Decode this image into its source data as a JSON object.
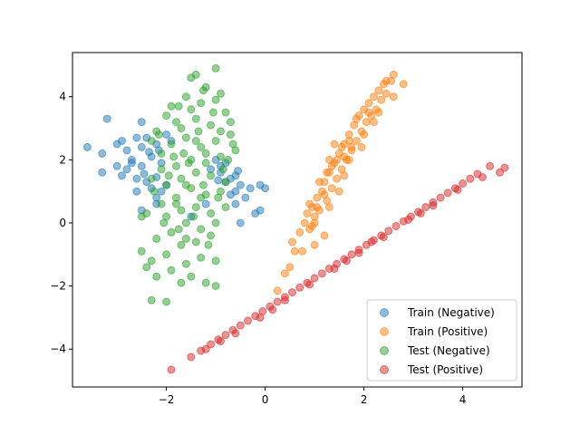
{
  "chart_data": {
    "type": "scatter",
    "title": "",
    "xlabel": "",
    "ylabel": "",
    "xlim": [
      -3.9,
      5.2
    ],
    "ylim": [
      -5.2,
      5.4
    ],
    "xticks": [
      -2,
      0,
      2,
      4
    ],
    "yticks": [
      -4,
      -2,
      0,
      2,
      4
    ],
    "xtick_labels": [
      "−2",
      "0",
      "2",
      "4"
    ],
    "ytick_labels": [
      "−4",
      "−2",
      "0",
      "2",
      "4"
    ],
    "grid": false,
    "legend_position": "lower-right",
    "series": [
      {
        "name": "Train (Negative)",
        "color": "#1f77b4",
        "points": [
          [
            -3.2,
            3.3
          ],
          [
            -2.5,
            3.2
          ],
          [
            -2.6,
            2.7
          ],
          [
            -2.9,
            2.6
          ],
          [
            -3.0,
            2.5
          ],
          [
            -3.6,
            2.4
          ],
          [
            -3.3,
            2.2
          ],
          [
            -2.8,
            2.3
          ],
          [
            -2.5,
            2.4
          ],
          [
            -2.2,
            2.5
          ],
          [
            -2.7,
            2.0
          ],
          [
            -3.0,
            1.8
          ],
          [
            -3.3,
            1.6
          ],
          [
            -2.9,
            1.5
          ],
          [
            -2.6,
            1.4
          ],
          [
            -2.5,
            1.8
          ],
          [
            -2.4,
            1.3
          ],
          [
            -2.3,
            2.1
          ],
          [
            -2.1,
            1.9
          ],
          [
            -2.0,
            2.8
          ],
          [
            -2.3,
            1.1
          ],
          [
            -2.1,
            1.0
          ],
          [
            -2.6,
            1.0
          ],
          [
            -2.2,
            0.8
          ],
          [
            -2.4,
            2.7
          ],
          [
            -2.8,
            1.7
          ],
          [
            -2.7,
            1.9
          ],
          [
            -2.45,
            1.55
          ],
          [
            -2.2,
            1.45
          ],
          [
            -2.35,
            2.25
          ],
          [
            -2.15,
            2.3
          ],
          [
            -1.9,
            2.6
          ],
          [
            -2.0,
            1.2
          ],
          [
            -0.9,
            1.8
          ],
          [
            -0.6,
            1.5
          ],
          [
            -0.5,
            1.2
          ],
          [
            -0.6,
            1.0
          ],
          [
            -0.8,
            1.3
          ],
          [
            -0.4,
            0.8
          ],
          [
            -0.7,
            0.9
          ],
          [
            -0.3,
            1.1
          ],
          [
            -0.1,
            1.2
          ],
          [
            0.0,
            1.1
          ],
          [
            -0.2,
            0.3
          ],
          [
            -0.1,
            0.4
          ],
          [
            -0.5,
            0.0
          ],
          [
            -0.8,
            1.9
          ],
          [
            -0.9,
            1.6
          ],
          [
            -0.7,
            1.4
          ],
          [
            -1.0,
            2.0
          ],
          [
            -0.55,
            1.65
          ],
          [
            -1.1,
            1.7
          ],
          [
            -0.95,
            1.35
          ],
          [
            -2.5,
            0.4
          ],
          [
            -1.5,
            0.2
          ],
          [
            -1.2,
            0.6
          ],
          [
            -2.2,
            0.6
          ],
          [
            -0.6,
            0.6
          ]
        ]
      },
      {
        "name": "Train (Positive)",
        "color": "#ff7f0e",
        "points": [
          [
            0.25,
            -2.15
          ],
          [
            0.5,
            -1.4
          ],
          [
            0.6,
            -0.9
          ],
          [
            0.55,
            -0.6
          ],
          [
            0.7,
            -0.3
          ],
          [
            0.75,
            -0.9
          ],
          [
            0.8,
            0.0
          ],
          [
            0.85,
            0.3
          ],
          [
            0.9,
            -0.2
          ],
          [
            0.95,
            0.5
          ],
          [
            1.0,
            0.2
          ],
          [
            1.0,
            -0.7
          ],
          [
            1.05,
            0.8
          ],
          [
            1.1,
            0.4
          ],
          [
            1.15,
            1.0
          ],
          [
            1.2,
            -0.4
          ],
          [
            1.2,
            1.3
          ],
          [
            1.25,
            0.7
          ],
          [
            1.3,
            1.6
          ],
          [
            1.35,
            1.1
          ],
          [
            1.4,
            1.9
          ],
          [
            1.45,
            1.4
          ],
          [
            1.5,
            2.2
          ],
          [
            1.55,
            1.7
          ],
          [
            1.6,
            2.5
          ],
          [
            1.65,
            2.0
          ],
          [
            1.7,
            2.8
          ],
          [
            1.75,
            2.3
          ],
          [
            1.8,
            3.1
          ],
          [
            1.85,
            2.6
          ],
          [
            1.9,
            3.4
          ],
          [
            1.95,
            2.9
          ],
          [
            2.0,
            3.6
          ],
          [
            2.05,
            3.2
          ],
          [
            2.1,
            3.8
          ],
          [
            2.15,
            3.4
          ],
          [
            2.2,
            4.0
          ],
          [
            2.25,
            3.6
          ],
          [
            2.3,
            4.2
          ],
          [
            2.35,
            3.9
          ],
          [
            2.4,
            4.4
          ],
          [
            2.45,
            4.1
          ],
          [
            2.55,
            4.5
          ],
          [
            2.6,
            4.0
          ],
          [
            2.8,
            4.4
          ],
          [
            2.6,
            4.7
          ],
          [
            2.45,
            4.5
          ],
          [
            1.3,
            2.0
          ],
          [
            1.4,
            2.5
          ],
          [
            1.0,
            0.0
          ],
          [
            0.9,
            0.6
          ],
          [
            1.6,
            1.5
          ],
          [
            1.1,
            1.3
          ],
          [
            1.5,
            1.0
          ],
          [
            1.3,
            0.5
          ],
          [
            1.7,
            2.0
          ],
          [
            1.85,
            3.3
          ],
          [
            2.0,
            2.8
          ],
          [
            1.2,
            0.9
          ],
          [
            1.45,
            2.0
          ],
          [
            2.1,
            3.5
          ],
          [
            2.3,
            3.5
          ],
          [
            1.7,
            2.6
          ],
          [
            0.4,
            -1.6
          ],
          [
            1.95,
            2.4
          ],
          [
            1.55,
            2.4
          ],
          [
            1.25,
            1.6
          ],
          [
            1.05,
            0.5
          ],
          [
            2.2,
            3.2
          ],
          [
            1.6,
            2.1
          ],
          [
            1.75,
            2.4
          ],
          [
            1.35,
            1.8
          ],
          [
            0.95,
            -0.1
          ]
        ]
      },
      {
        "name": "Test (Negative)",
        "color": "#2ca02c",
        "points": [
          [
            -1.0,
            4.9
          ],
          [
            -1.5,
            4.6
          ],
          [
            -1.4,
            4.7
          ],
          [
            -1.2,
            4.3
          ],
          [
            -0.9,
            4.1
          ],
          [
            -1.0,
            3.9
          ],
          [
            -1.6,
            4.0
          ],
          [
            -1.9,
            3.7
          ],
          [
            -2.0,
            3.4
          ],
          [
            -1.3,
            3.8
          ],
          [
            -0.8,
            3.5
          ],
          [
            -0.7,
            2.8
          ],
          [
            -0.6,
            2.3
          ],
          [
            -0.75,
            2.0
          ],
          [
            -1.1,
            3.1
          ],
          [
            -1.4,
            3.3
          ],
          [
            -1.7,
            3.0
          ],
          [
            -2.2,
            2.9
          ],
          [
            -2.3,
            2.6
          ],
          [
            -2.1,
            2.2
          ],
          [
            -1.9,
            2.5
          ],
          [
            -1.6,
            2.7
          ],
          [
            -1.3,
            2.4
          ],
          [
            -1.0,
            2.6
          ],
          [
            -0.9,
            2.1
          ],
          [
            -1.2,
            1.9
          ],
          [
            -1.5,
            2.0
          ],
          [
            -1.8,
            1.8
          ],
          [
            -2.1,
            1.7
          ],
          [
            -2.3,
            1.4
          ],
          [
            -2.0,
            1.2
          ],
          [
            -1.7,
            1.4
          ],
          [
            -1.4,
            1.6
          ],
          [
            -1.1,
            1.5
          ],
          [
            -0.8,
            1.3
          ],
          [
            -0.9,
            1.0
          ],
          [
            -1.2,
            0.9
          ],
          [
            -1.5,
            1.1
          ],
          [
            -1.8,
            0.8
          ],
          [
            -2.1,
            0.6
          ],
          [
            -2.4,
            0.3
          ],
          [
            -2.5,
            0.2
          ],
          [
            -2.0,
            0.2
          ],
          [
            -1.7,
            0.4
          ],
          [
            -1.4,
            0.5
          ],
          [
            -1.1,
            0.3
          ],
          [
            -0.8,
            0.5
          ],
          [
            -1.0,
            0.0
          ],
          [
            -1.3,
            -0.2
          ],
          [
            -1.6,
            0.0
          ],
          [
            -1.9,
            -0.3
          ],
          [
            -2.2,
            -0.5
          ],
          [
            -2.5,
            -0.9
          ],
          [
            -2.3,
            -1.2
          ],
          [
            -2.0,
            -1.0
          ],
          [
            -1.7,
            -0.7
          ],
          [
            -1.4,
            -0.6
          ],
          [
            -1.1,
            -0.4
          ],
          [
            -1.0,
            -1.2
          ],
          [
            -1.3,
            -1.1
          ],
          [
            -1.6,
            -1.3
          ],
          [
            -1.9,
            -1.5
          ],
          [
            -2.2,
            -1.7
          ],
          [
            -2.4,
            -1.4
          ],
          [
            -1.5,
            -1.7
          ],
          [
            -1.7,
            -1.9
          ],
          [
            -1.2,
            -1.9
          ],
          [
            -1.0,
            -2.0
          ],
          [
            -2.3,
            -2.45
          ],
          [
            -2.0,
            -2.5
          ],
          [
            -1.6,
            -0.5
          ],
          [
            -1.2,
            2.2
          ],
          [
            -1.5,
            3.6
          ],
          [
            -1.8,
            3.2
          ],
          [
            -1.05,
            3.5
          ],
          [
            -0.7,
            3.2
          ],
          [
            -1.35,
            2.9
          ],
          [
            -1.65,
            2.2
          ],
          [
            -1.95,
            1.5
          ],
          [
            -2.25,
            1.0
          ],
          [
            -1.25,
            1.2
          ],
          [
            -0.95,
            0.8
          ],
          [
            -1.55,
            1.9
          ],
          [
            -1.85,
            2.1
          ],
          [
            -1.45,
            0.2
          ],
          [
            -1.75,
            -0.2
          ],
          [
            -1.15,
            -0.7
          ],
          [
            -2.05,
            0.0
          ],
          [
            -0.85,
            1.7
          ],
          [
            -0.65,
            2.5
          ],
          [
            -2.15,
            2.8
          ],
          [
            -1.25,
            4.2
          ],
          [
            -1.75,
            3.7
          ],
          [
            -0.9,
            2.9
          ],
          [
            -1.4,
            2.6
          ],
          [
            -1.6,
            1.2
          ],
          [
            -1.3,
            0.8
          ],
          [
            -1.8,
            0.6
          ]
        ]
      },
      {
        "name": "Test (Positive)",
        "color": "#d62728",
        "points": [
          [
            -1.9,
            -4.65
          ],
          [
            -1.5,
            -4.25
          ],
          [
            -1.3,
            -4.05
          ],
          [
            -1.1,
            -3.85
          ],
          [
            -0.95,
            -3.7
          ],
          [
            -0.8,
            -3.55
          ],
          [
            -0.65,
            -3.4
          ],
          [
            -0.5,
            -3.25
          ],
          [
            -0.35,
            -3.1
          ],
          [
            -0.2,
            -2.95
          ],
          [
            -0.05,
            -2.8
          ],
          [
            0.1,
            -2.65
          ],
          [
            0.25,
            -2.5
          ],
          [
            0.4,
            -2.35
          ],
          [
            0.55,
            -2.2
          ],
          [
            0.7,
            -2.05
          ],
          [
            0.85,
            -1.9
          ],
          [
            1.0,
            -1.75
          ],
          [
            1.15,
            -1.6
          ],
          [
            1.3,
            -1.45
          ],
          [
            1.45,
            -1.3
          ],
          [
            1.6,
            -1.15
          ],
          [
            1.75,
            -1.0
          ],
          [
            1.9,
            -0.85
          ],
          [
            2.05,
            -0.7
          ],
          [
            2.2,
            -0.55
          ],
          [
            2.35,
            -0.4
          ],
          [
            2.5,
            -0.25
          ],
          [
            2.65,
            -0.1
          ],
          [
            2.8,
            0.05
          ],
          [
            2.95,
            0.2
          ],
          [
            3.1,
            0.35
          ],
          [
            3.25,
            0.5
          ],
          [
            3.4,
            0.65
          ],
          [
            3.55,
            0.8
          ],
          [
            3.7,
            0.95
          ],
          [
            3.85,
            1.1
          ],
          [
            4.0,
            1.25
          ],
          [
            4.15,
            1.4
          ],
          [
            4.3,
            1.55
          ],
          [
            4.55,
            1.8
          ],
          [
            4.75,
            1.6
          ],
          [
            4.85,
            1.75
          ],
          [
            4.4,
            1.45
          ],
          [
            -0.6,
            -3.5
          ],
          [
            -0.1,
            -3.0
          ],
          [
            0.4,
            -2.45
          ],
          [
            0.9,
            -1.95
          ],
          [
            1.4,
            -1.45
          ],
          [
            1.9,
            -0.95
          ],
          [
            2.4,
            -0.45
          ],
          [
            2.9,
            0.1
          ],
          [
            3.4,
            0.55
          ],
          [
            3.9,
            1.05
          ],
          [
            -1.2,
            -4.0
          ],
          [
            -0.9,
            -3.75
          ],
          [
            1.65,
            -1.2
          ],
          [
            2.15,
            -0.6
          ],
          [
            3.15,
            0.3
          ],
          [
            0.15,
            -2.75
          ]
        ]
      }
    ]
  }
}
